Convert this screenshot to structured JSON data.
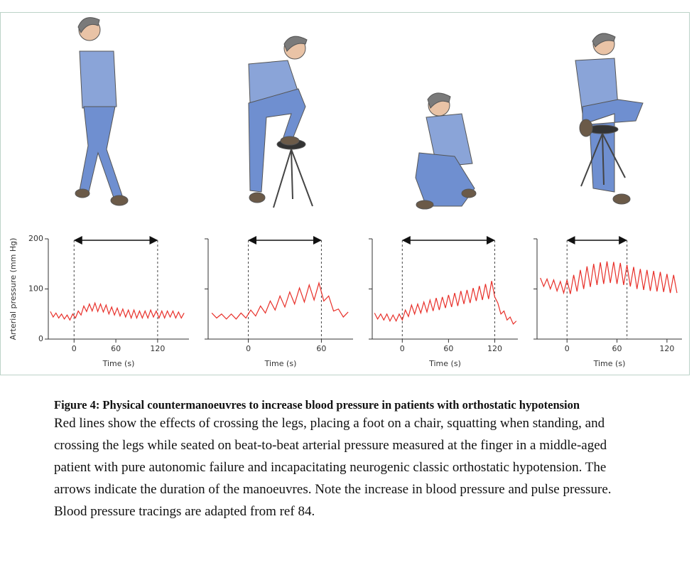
{
  "chart_data": [
    {
      "type": "line",
      "ylabel": "Arterial pressure (mm Hg)",
      "xlabel": "Time (s)",
      "xlim": [
        -37,
        165
      ],
      "ylim": [
        0,
        200
      ],
      "xticks": [
        0,
        60,
        120
      ],
      "yticks": [
        0,
        100,
        200
      ],
      "ytick_labels": true,
      "manoeuvre": [
        0,
        120
      ],
      "color": "#e8302a",
      "x": [
        -34,
        -30,
        -26,
        -22,
        -18,
        -14,
        -10,
        -6,
        -2,
        2,
        6,
        10,
        14,
        18,
        22,
        26,
        30,
        34,
        38,
        42,
        46,
        50,
        54,
        58,
        62,
        66,
        70,
        74,
        78,
        82,
        86,
        90,
        94,
        98,
        102,
        106,
        110,
        114,
        118,
        122,
        126,
        130,
        134,
        138,
        142,
        146,
        150,
        154,
        158
      ],
      "values": [
        55,
        44,
        52,
        42,
        50,
        40,
        48,
        38,
        50,
        42,
        56,
        48,
        66,
        55,
        70,
        56,
        72,
        55,
        70,
        54,
        68,
        50,
        64,
        48,
        62,
        46,
        60,
        44,
        58,
        42,
        58,
        42,
        56,
        42,
        56,
        42,
        58,
        44,
        56,
        42,
        56,
        42,
        56,
        44,
        56,
        42,
        54,
        42,
        52
      ]
    },
    {
      "type": "line",
      "xlabel": "Time (s)",
      "xlim": [
        -33,
        86
      ],
      "ylim": [
        0,
        200
      ],
      "xticks": [
        0,
        60
      ],
      "yticks": [
        0,
        100,
        200
      ],
      "ytick_labels": false,
      "manoeuvre": [
        0,
        60
      ],
      "color": "#e8302a",
      "x": [
        -30,
        -26,
        -22,
        -18,
        -14,
        -10,
        -6,
        -2,
        2,
        6,
        10,
        14,
        18,
        22,
        26,
        30,
        34,
        38,
        42,
        46,
        50,
        54,
        58,
        62,
        66,
        70,
        74,
        78,
        82
      ],
      "values": [
        52,
        42,
        50,
        40,
        50,
        40,
        52,
        42,
        58,
        46,
        66,
        52,
        76,
        58,
        86,
        64,
        94,
        70,
        102,
        74,
        108,
        78,
        112,
        76,
        86,
        56,
        60,
        44,
        54
      ]
    },
    {
      "type": "line",
      "xlabel": "Time (s)",
      "xlim": [
        -39,
        150
      ],
      "ylim": [
        0,
        200
      ],
      "xticks": [
        0,
        60,
        120
      ],
      "yticks": [
        0,
        100,
        200
      ],
      "ytick_labels": false,
      "manoeuvre": [
        0,
        120
      ],
      "color": "#e8302a",
      "x": [
        -36,
        -32,
        -28,
        -24,
        -20,
        -16,
        -12,
        -8,
        -4,
        0,
        4,
        8,
        12,
        16,
        20,
        24,
        28,
        32,
        36,
        40,
        44,
        48,
        52,
        56,
        60,
        64,
        68,
        72,
        76,
        80,
        84,
        88,
        92,
        96,
        100,
        104,
        108,
        112,
        116,
        120,
        124,
        128,
        132,
        136,
        140,
        144,
        148
      ],
      "values": [
        52,
        40,
        50,
        38,
        50,
        36,
        48,
        36,
        50,
        38,
        58,
        45,
        68,
        50,
        70,
        52,
        74,
        54,
        78,
        56,
        82,
        58,
        84,
        62,
        88,
        64,
        92,
        66,
        96,
        70,
        98,
        72,
        102,
        76,
        106,
        78,
        110,
        80,
        116,
        84,
        72,
        50,
        56,
        38,
        44,
        30,
        36
      ]
    },
    {
      "type": "line",
      "xlabel": "Time (s)",
      "xlim": [
        -36,
        138
      ],
      "ylim": [
        0,
        200
      ],
      "xticks": [
        0,
        60,
        120
      ],
      "yticks": [
        0,
        100,
        200
      ],
      "ytick_labels": false,
      "manoeuvre": [
        0,
        72
      ],
      "color": "#e8302a",
      "x": [
        -32,
        -28,
        -24,
        -20,
        -16,
        -12,
        -8,
        -4,
        0,
        4,
        8,
        12,
        16,
        20,
        24,
        28,
        32,
        36,
        40,
        44,
        48,
        52,
        56,
        60,
        64,
        68,
        72,
        76,
        80,
        84,
        88,
        92,
        96,
        100,
        104,
        108,
        112,
        116,
        120,
        124,
        128,
        132
      ],
      "values": [
        122,
        105,
        120,
        100,
        118,
        96,
        115,
        92,
        118,
        90,
        128,
        95,
        138,
        100,
        145,
        104,
        150,
        108,
        153,
        110,
        155,
        112,
        154,
        110,
        152,
        108,
        148,
        105,
        144,
        100,
        140,
        98,
        138,
        96,
        136,
        95,
        134,
        94,
        130,
        92,
        128,
        92
      ]
    }
  ],
  "caption": {
    "title": "Figure 4: Physical countermanoeuvres to increase blood pressure in patients with orthostatic hypotension",
    "text": "Red lines show the effects of crossing the legs, placing a foot on a chair, squatting when standing, and crossing the legs while seated on beat-to-beat arterial pressure measured at the finger in a middle-aged patient with pure autonomic failure and incapacitating neurogenic classic orthostatic hypotension. The arrows indicate the duration of the manoeuvres. Note the increase in blood pressure and pulse pressure. Blood pressure tracings are adapted from ref 84."
  }
}
